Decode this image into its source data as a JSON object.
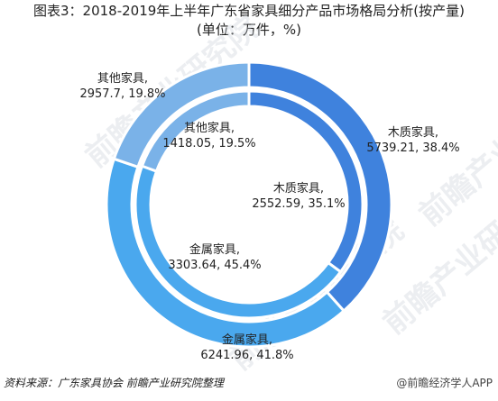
{
  "title": {
    "line1": "图表3：2018-2019年上半年广东省家具细分产品市场格局分析(按产量)",
    "line2": "(单位：万件，%)"
  },
  "chart_data": {
    "type": "pie",
    "subtype": "double-donut",
    "rings": [
      {
        "name": "",
        "position": "outer",
        "slices": [
          {
            "label": "木质家具",
            "value": 5739.21,
            "percent": 38.4,
            "color": "#3f82dd",
            "text": "木质家具,"
          },
          {
            "label": "金属家具",
            "value": 6241.96,
            "percent": 41.8,
            "color": "#4aa8ee",
            "text": "金属家具,"
          },
          {
            "label": "其他家具",
            "value": 2957.7,
            "percent": 19.8,
            "color": "#7ab2e8",
            "text": "其他家具,"
          }
        ]
      },
      {
        "name": "",
        "position": "inner",
        "slices": [
          {
            "label": "木质家具",
            "value": 2552.59,
            "percent": 35.1,
            "color": "#3f82dd",
            "text": "木质家具,"
          },
          {
            "label": "金属家具",
            "value": 3303.64,
            "percent": 45.4,
            "color": "#4aa8ee",
            "text": "金属家具,"
          },
          {
            "label": "其他家具",
            "value": 1418.05,
            "percent": 19.5,
            "color": "#7ab2e8",
            "text": "其他家具,"
          }
        ]
      }
    ],
    "value_labels": {
      "outer": [
        "5739.21, 38.4%",
        "6241.96, 41.8%",
        "2957.7, 19.8%"
      ],
      "inner": [
        "2552.59, 35.1%",
        "3303.64, 45.4%",
        "1418.05, 19.5%"
      ]
    }
  },
  "footer": {
    "source": "资料来源：广东家具协会 前瞻产业研究院整理",
    "brand": "@前瞻经济学人APP"
  },
  "watermark": "前瞻产业研究院"
}
